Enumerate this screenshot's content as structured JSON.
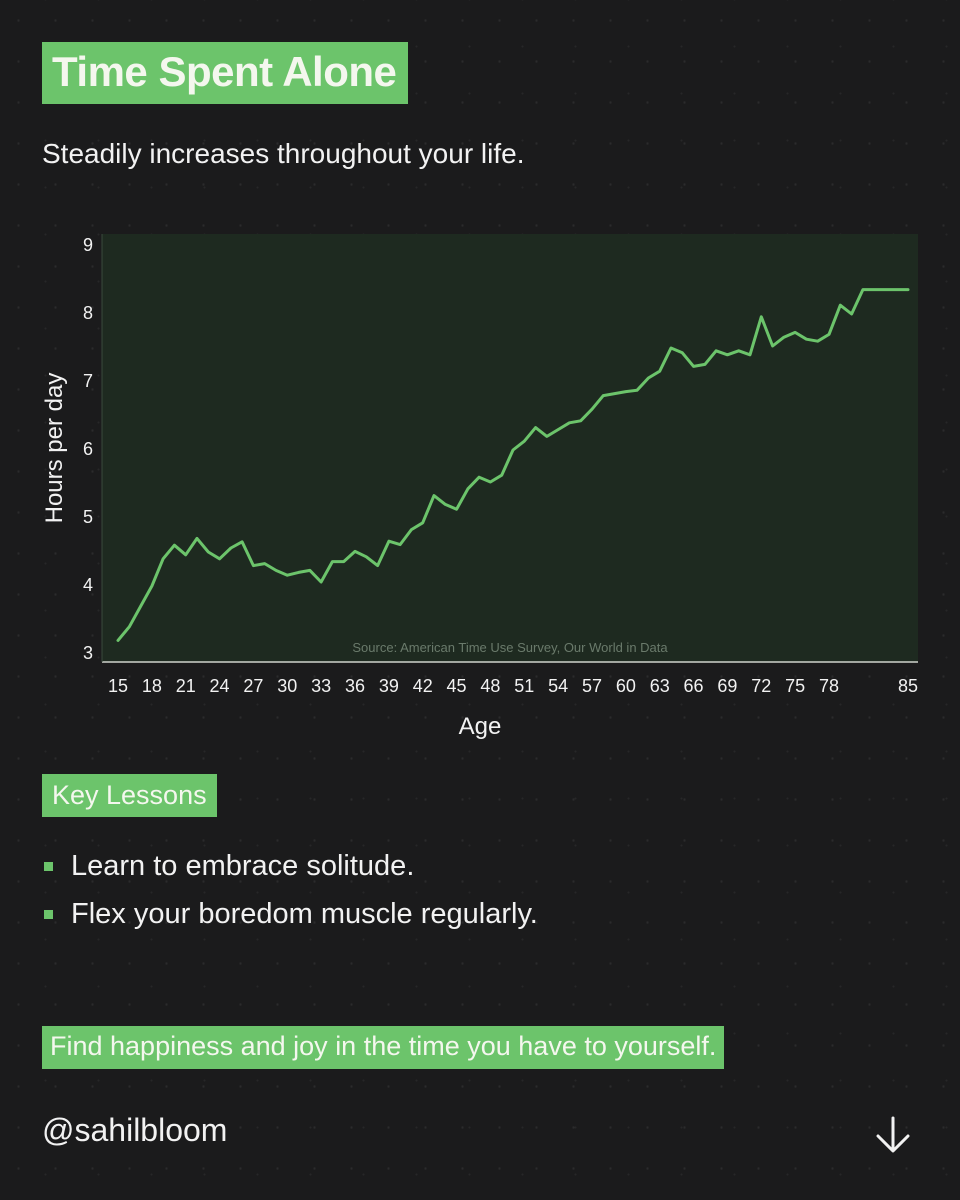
{
  "header": {
    "title": "Time Spent Alone",
    "subtitle": "Steadily increases throughout your life."
  },
  "chart_data": {
    "type": "line",
    "xlabel": "Age",
    "ylabel": "Hours per day",
    "source": "Source: American Time Use Survey, Our World in Data",
    "xlim": [
      15,
      85
    ],
    "ylim": [
      3,
      9
    ],
    "xticks": [
      15,
      18,
      21,
      24,
      27,
      30,
      33,
      36,
      39,
      42,
      45,
      48,
      51,
      54,
      57,
      60,
      63,
      66,
      69,
      72,
      75,
      78,
      85
    ],
    "yticks": [
      3,
      4,
      5,
      6,
      7,
      8,
      9
    ],
    "grid": false,
    "line_color": "#6cc46b",
    "plot_bg": "#1e2a20",
    "x": [
      15,
      16,
      17,
      18,
      19,
      20,
      21,
      22,
      23,
      24,
      25,
      26,
      27,
      28,
      29,
      30,
      31,
      32,
      33,
      34,
      35,
      36,
      37,
      38,
      39,
      40,
      41,
      42,
      43,
      44,
      45,
      46,
      47,
      48,
      49,
      50,
      51,
      52,
      53,
      54,
      55,
      56,
      57,
      58,
      59,
      60,
      61,
      62,
      63,
      64,
      65,
      66,
      67,
      68,
      69,
      70,
      71,
      72,
      73,
      74,
      75,
      76,
      77,
      78,
      79,
      80,
      81,
      82,
      83,
      84,
      85
    ],
    "values": [
      3.17,
      3.37,
      3.67,
      3.97,
      4.37,
      4.57,
      4.43,
      4.67,
      4.47,
      4.37,
      4.53,
      4.62,
      4.27,
      4.3,
      4.2,
      4.13,
      4.17,
      4.2,
      4.03,
      4.33,
      4.33,
      4.48,
      4.4,
      4.27,
      4.63,
      4.58,
      4.8,
      4.9,
      5.3,
      5.17,
      5.1,
      5.4,
      5.57,
      5.5,
      5.6,
      5.97,
      6.1,
      6.3,
      6.17,
      6.27,
      6.37,
      6.4,
      6.57,
      6.77,
      6.8,
      6.83,
      6.85,
      7.03,
      7.13,
      7.47,
      7.4,
      7.2,
      7.23,
      7.43,
      7.37,
      7.43,
      7.37,
      7.93,
      7.5,
      7.63,
      7.7,
      7.6,
      7.57,
      7.67,
      8.1,
      7.97,
      8.33,
      8.33,
      8.33,
      8.33,
      8.33
    ]
  },
  "lessons": {
    "tag": "Key Lessons",
    "items": [
      "Learn to embrace solitude.",
      "Flex your boredom muscle regularly."
    ]
  },
  "closing": "Find happiness and joy in the time you have to yourself.",
  "footer": {
    "handle": "@sahilbloom",
    "arrow_icon": "arrow-down-icon"
  }
}
